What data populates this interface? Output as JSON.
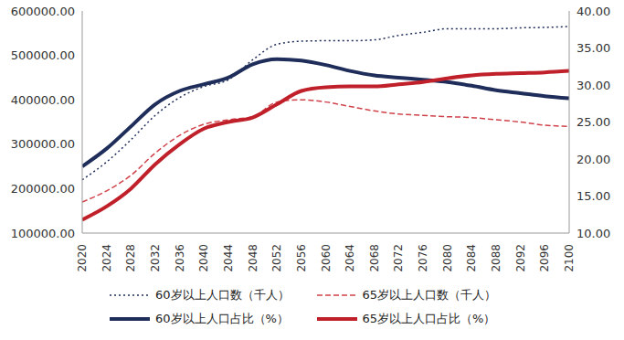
{
  "chart_data": {
    "type": "line",
    "x": [
      2020,
      2024,
      2028,
      2032,
      2036,
      2040,
      2044,
      2048,
      2052,
      2056,
      2060,
      2064,
      2068,
      2072,
      2076,
      2080,
      2084,
      2088,
      2092,
      2096,
      2100
    ],
    "xlim": [
      2020,
      2100
    ],
    "xticks": [
      2020,
      2024,
      2028,
      2032,
      2036,
      2040,
      2044,
      2048,
      2052,
      2056,
      2060,
      2064,
      2068,
      2072,
      2076,
      2080,
      2084,
      2088,
      2092,
      2096,
      2100
    ],
    "ylim": [
      100000,
      600000
    ],
    "yticks": [
      {
        "value": 100000,
        "label": "100000.00"
      },
      {
        "value": 200000,
        "label": "200000.00"
      },
      {
        "value": 300000,
        "label": "300000.00"
      },
      {
        "value": 400000,
        "label": "400000.00"
      },
      {
        "value": 500000,
        "label": "500000.00"
      },
      {
        "value": 600000,
        "label": "600000.00"
      }
    ],
    "y2lim": [
      10,
      40
    ],
    "y2ticks": [
      {
        "value": 10,
        "label": "10.00"
      },
      {
        "value": 15,
        "label": "15.00"
      },
      {
        "value": 20,
        "label": "20.00"
      },
      {
        "value": 25,
        "label": "25.00"
      },
      {
        "value": 30,
        "label": "30.00"
      },
      {
        "value": 35,
        "label": "35.00"
      },
      {
        "value": 40,
        "label": "40.00"
      }
    ],
    "grid": false,
    "legend": "bottom",
    "series": [
      {
        "name": "60岁以上人口数（千人）",
        "color": "#1f2d5a",
        "line_style": "dotted",
        "values": [
          220000,
          260000,
          310000,
          365000,
          405000,
          430000,
          445000,
          490000,
          525000,
          532000,
          533000,
          533000,
          535000,
          545000,
          552000,
          560000,
          560000,
          560000,
          562000,
          563000,
          565000
        ]
      },
      {
        "name": "65岁以上人口数（千人）",
        "color": "#d0424a",
        "line_style": "dashed",
        "values": [
          170000,
          195000,
          230000,
          280000,
          320000,
          345000,
          355000,
          362000,
          395000,
          400000,
          395000,
          385000,
          375000,
          368000,
          365000,
          362000,
          360000,
          355000,
          350000,
          343000,
          340000
        ]
      },
      {
        "name": "60岁以上人口占比（%）",
        "color": "#1f2d5a",
        "line_style": "solid",
        "axis": "y2",
        "values": [
          19.0,
          21.4,
          24.4,
          27.4,
          29.2,
          30.1,
          31.0,
          32.8,
          33.5,
          33.3,
          32.7,
          31.9,
          31.3,
          31.0,
          30.7,
          30.4,
          29.9,
          29.3,
          28.9,
          28.5,
          28.2
        ]
      },
      {
        "name": "65岁以上人口占比（%）",
        "color": "#c0202a",
        "line_style": "solid",
        "axis": "y2",
        "values": [
          11.8,
          13.6,
          16.0,
          19.3,
          22.0,
          24.1,
          25.0,
          25.6,
          27.4,
          29.2,
          29.7,
          29.8,
          29.8,
          30.1,
          30.4,
          30.9,
          31.3,
          31.5,
          31.6,
          31.7,
          31.9
        ]
      }
    ]
  }
}
